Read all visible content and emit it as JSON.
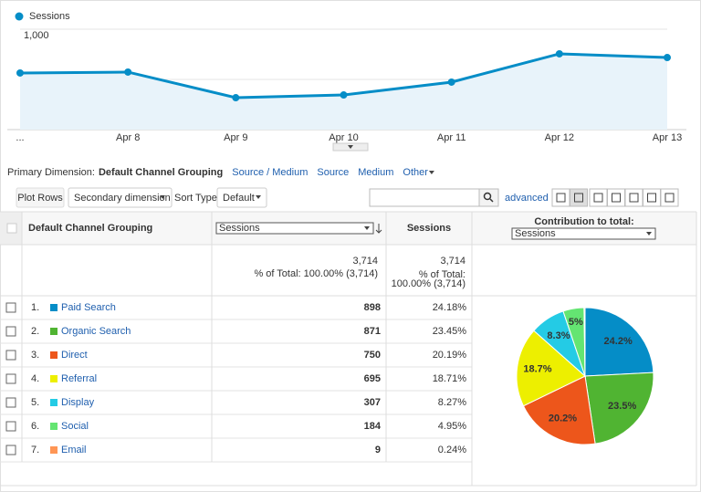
{
  "chart": {
    "type": "line",
    "legend": "Sessions",
    "color": "#058dc7",
    "categories": [
      "...",
      "Apr 8",
      "Apr 9",
      "Apr 10",
      "Apr 11",
      "Apr 12",
      "Apr 13"
    ],
    "values": [
      564,
      573,
      318,
      345,
      473,
      755,
      718
    ],
    "ylim": [
      0,
      1000
    ],
    "yticks": [
      500,
      {
        "value": 1000,
        "label": "1,000"
      }
    ],
    "grid": true
  },
  "dimension": {
    "label": "Primary Dimension:",
    "active": "Default Channel Grouping",
    "options": [
      "Source / Medium",
      "Source",
      "Medium",
      "Other"
    ]
  },
  "toolbar": {
    "plot_rows": "Plot Rows",
    "secondary": "Secondary dimension",
    "sort_label": "Sort Type:",
    "sort_value": "Default",
    "advanced": "advanced"
  },
  "table": {
    "headers": {
      "dimension": "Default Channel Grouping",
      "metric_select": "Sessions",
      "metric": "Sessions",
      "contribution": "Contribution to total:",
      "contribution_select": "Sessions"
    },
    "totals": {
      "sessions": "3,714",
      "sessions_note": "% of Total: 100.00% (3,714)",
      "metric": "3,714",
      "metric_note": [
        "% of Total:",
        "100.00% (3,714)"
      ]
    },
    "rows": [
      {
        "index": "1.",
        "name": "Paid Search",
        "color": "#058dc7",
        "sessions": "898",
        "percent": "24.18%"
      },
      {
        "index": "2.",
        "name": "Organic Search",
        "color": "#50b432",
        "sessions": "871",
        "percent": "23.45%"
      },
      {
        "index": "3.",
        "name": "Direct",
        "color": "#ed561b",
        "sessions": "750",
        "percent": "20.19%"
      },
      {
        "index": "4.",
        "name": "Referral",
        "color": "#edef00",
        "sessions": "695",
        "percent": "18.71%"
      },
      {
        "index": "5.",
        "name": "Display",
        "color": "#24cbe5",
        "sessions": "307",
        "percent": "8.27%"
      },
      {
        "index": "6.",
        "name": "Social",
        "color": "#64e572",
        "sessions": "184",
        "percent": "4.95%"
      },
      {
        "index": "7.",
        "name": "Email",
        "color": "#ff9655",
        "sessions": "9",
        "percent": "0.24%"
      }
    ]
  },
  "pie": {
    "type": "pie",
    "values": [
      24.18,
      23.45,
      20.19,
      18.71,
      8.27,
      4.95,
      0.24
    ],
    "value_labels": [
      "24.2%",
      "23.5%",
      "20.2%",
      "18.7%",
      "8.3%",
      "5%",
      null
    ]
  }
}
